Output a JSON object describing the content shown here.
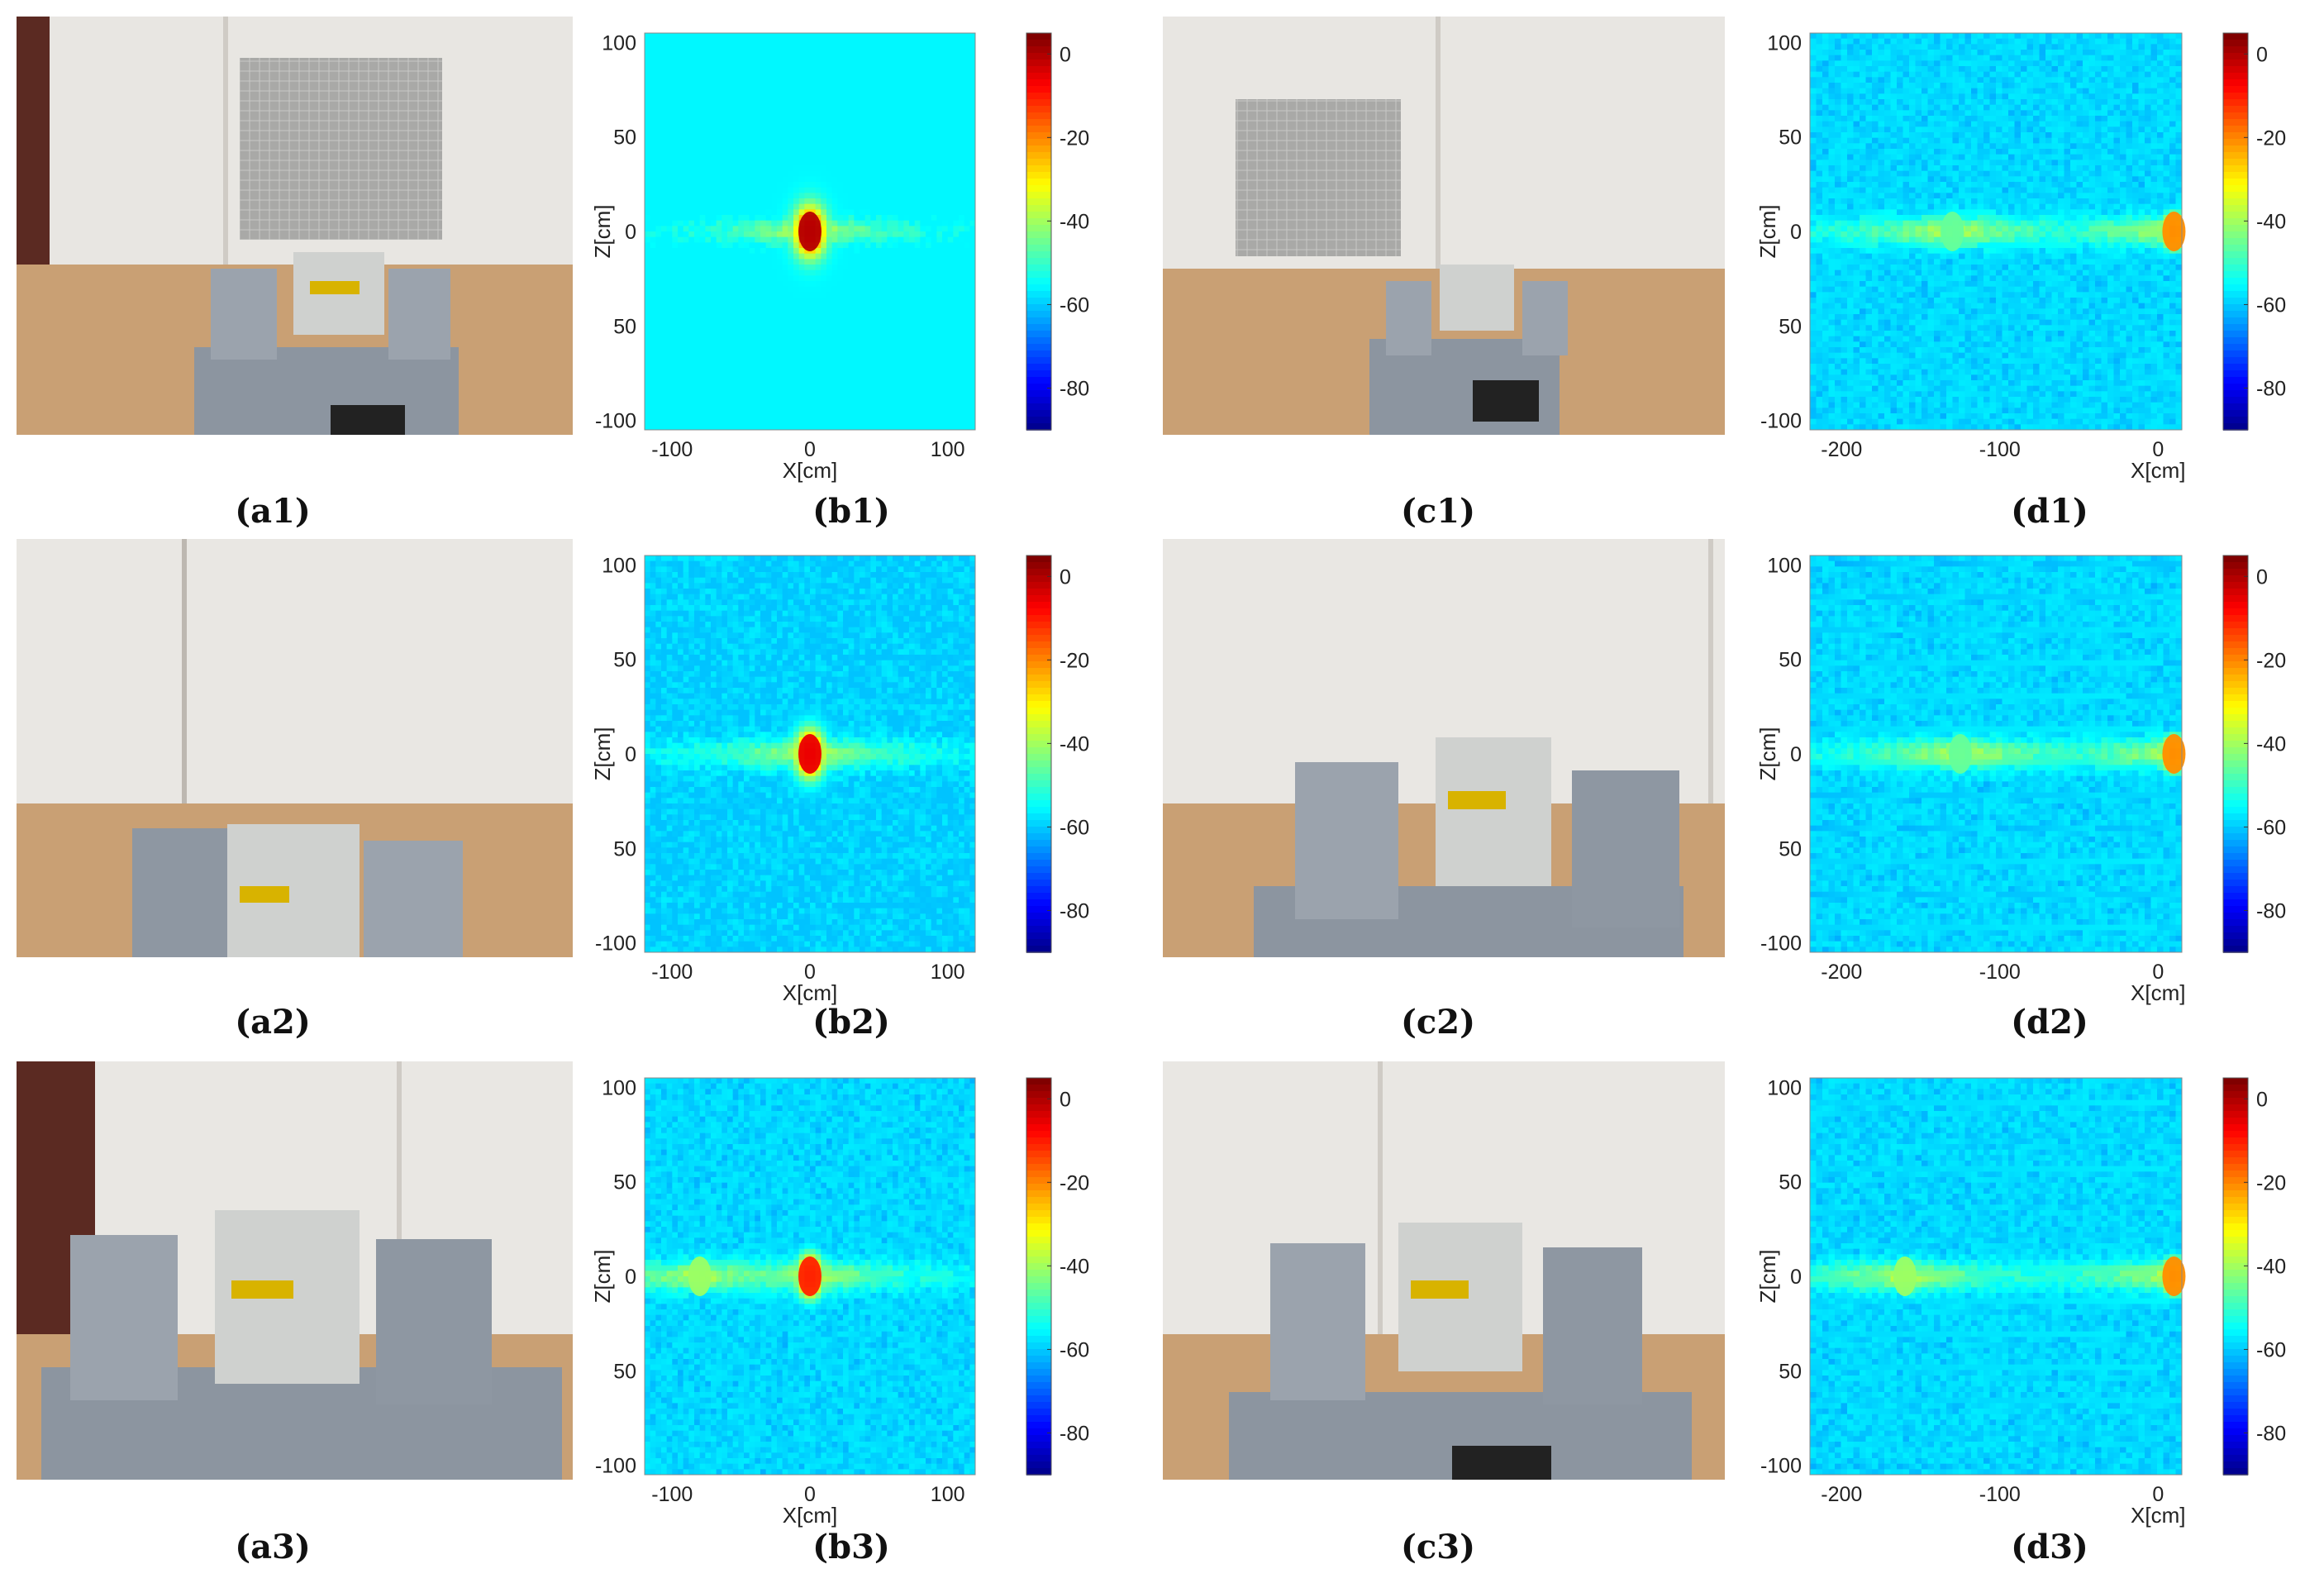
{
  "photos": [
    {
      "id": "a1",
      "caption": "(a1)",
      "description": "Radar unit facing a wall with a metal panel target"
    },
    {
      "id": "c1",
      "caption": "(c1)",
      "description": "Radar unit facing a wall with a metal panel target, offset position"
    },
    {
      "id": "a2",
      "caption": "(a2)",
      "description": "Radar unit close-up facing a plain wall"
    },
    {
      "id": "c2",
      "caption": "(c2)",
      "description": "Radar unit close-up facing a plain wall"
    },
    {
      "id": "a3",
      "caption": "(a3)",
      "description": "Radar unit close-up facing a wall near a door"
    },
    {
      "id": "c3",
      "caption": "(c3)",
      "description": "Radar unit close-up facing a wall"
    }
  ],
  "colorbar": {
    "colormap": "jet",
    "ticks": [
      "0",
      "-20",
      "-40",
      "-60",
      "-80"
    ],
    "range": [
      -90,
      5
    ]
  },
  "chart_data": [
    {
      "id": "b1",
      "caption": "(b1)",
      "type": "heatmap",
      "xlabel": "X[cm]",
      "ylabel": "Z[cm]",
      "xlim": [
        -120,
        120
      ],
      "ylim": [
        -105,
        105
      ],
      "xticks": [
        "-100",
        "0",
        "100"
      ],
      "yticks": [
        "100",
        "50",
        "0",
        "50",
        "-100"
      ],
      "colorbar_ticks": [
        "0",
        "-20",
        "-40",
        "-60",
        "-80"
      ],
      "value_range_db": [
        -90,
        5
      ],
      "hotspots": [
        {
          "x": 0,
          "z": 0,
          "db": 0
        }
      ]
    },
    {
      "id": "d1",
      "caption": "(d1)",
      "type": "heatmap",
      "xlabel": "X[cm]",
      "ylabel": "Z[cm]",
      "xlim": [
        -220,
        15
      ],
      "ylim": [
        -105,
        105
      ],
      "xticks": [
        "-200",
        "-100",
        "0"
      ],
      "yticks": [
        "100",
        "50",
        "0",
        "50",
        "-100"
      ],
      "colorbar_ticks": [
        "0",
        "-20",
        "-40",
        "-60",
        "-80"
      ],
      "value_range_db": [
        -90,
        5
      ],
      "hotspots": [
        {
          "x": 10,
          "z": 0,
          "db": -20
        },
        {
          "x": -130,
          "z": 0,
          "db": -45
        }
      ]
    },
    {
      "id": "b2",
      "caption": "(b2)",
      "type": "heatmap",
      "xlabel": "X[cm]",
      "ylabel": "Z[cm]",
      "xlim": [
        -120,
        120
      ],
      "ylim": [
        -105,
        105
      ],
      "xticks": [
        "-100",
        "0",
        "100"
      ],
      "yticks": [
        "100",
        "50",
        "0",
        "50",
        "-100"
      ],
      "colorbar_ticks": [
        "0",
        "-20",
        "-40",
        "-60",
        "-80"
      ],
      "value_range_db": [
        -90,
        5
      ],
      "hotspots": [
        {
          "x": 0,
          "z": 0,
          "db": -5
        }
      ]
    },
    {
      "id": "d2",
      "caption": "(d2)",
      "type": "heatmap",
      "xlabel": "X[cm]",
      "ylabel": "Z[cm]",
      "xlim": [
        -220,
        15
      ],
      "ylim": [
        -105,
        105
      ],
      "xticks": [
        "-200",
        "-100",
        "0"
      ],
      "yticks": [
        "100",
        "50",
        "0",
        "50",
        "-100"
      ],
      "colorbar_ticks": [
        "0",
        "-20",
        "-40",
        "-60",
        "-80"
      ],
      "value_range_db": [
        -90,
        5
      ],
      "hotspots": [
        {
          "x": 10,
          "z": 0,
          "db": -20
        },
        {
          "x": -125,
          "z": 0,
          "db": -45
        }
      ]
    },
    {
      "id": "b3",
      "caption": "(b3)",
      "type": "heatmap",
      "xlabel": "X[cm]",
      "ylabel": "Z[cm]",
      "xlim": [
        -120,
        120
      ],
      "ylim": [
        -105,
        105
      ],
      "xticks": [
        "-100",
        "0",
        "100"
      ],
      "yticks": [
        "100",
        "50",
        "0",
        "50",
        "-100"
      ],
      "colorbar_ticks": [
        "0",
        "-20",
        "-40",
        "-60",
        "-80"
      ],
      "value_range_db": [
        -90,
        5
      ],
      "hotspots": [
        {
          "x": 0,
          "z": 0,
          "db": -10
        },
        {
          "x": -80,
          "z": 0,
          "db": -40
        }
      ]
    },
    {
      "id": "d3",
      "caption": "(d3)",
      "type": "heatmap",
      "xlabel": "X[cm]",
      "ylabel": "Z[cm]",
      "xlim": [
        -220,
        15
      ],
      "ylim": [
        -105,
        105
      ],
      "xticks": [
        "-200",
        "-100",
        "0"
      ],
      "yticks": [
        "100",
        "50",
        "0",
        "50",
        "-100"
      ],
      "colorbar_ticks": [
        "0",
        "-20",
        "-40",
        "-60",
        "-80"
      ],
      "value_range_db": [
        -90,
        5
      ],
      "hotspots": [
        {
          "x": 10,
          "z": 0,
          "db": -20
        },
        {
          "x": -160,
          "z": 0,
          "db": -40
        }
      ]
    }
  ]
}
